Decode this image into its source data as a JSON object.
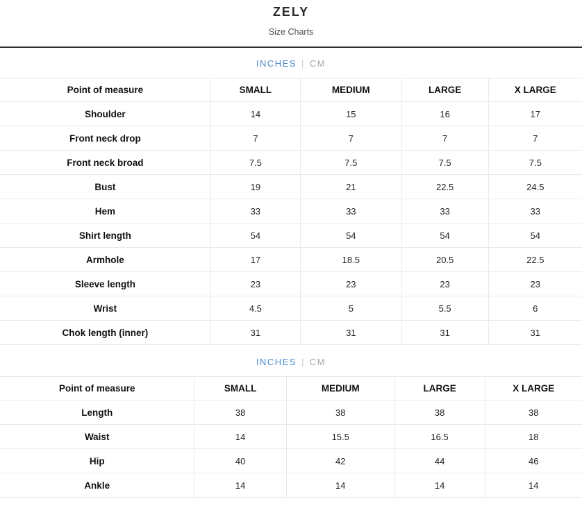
{
  "page": {
    "title": "ZELY",
    "subtitle": "Size Charts"
  },
  "colors": {
    "accent_blue": "#4a8bc9",
    "inactive_gray": "#a2a6aa",
    "divider_dark": "#2f2f2f",
    "table_border": "#e9e9e9"
  },
  "unit_toggle": {
    "inches_label": "INCHES",
    "separator": "|",
    "cm_label": "CM",
    "active_unit": "INCHES"
  },
  "tables": [
    {
      "name": "top-garment-size-chart",
      "headers": [
        "Point of measure",
        "SMALL",
        "MEDIUM",
        "LARGE",
        "X LARGE"
      ],
      "rows": [
        {
          "label": "Shoulder",
          "values": [
            "14",
            "15",
            "16",
            "17"
          ]
        },
        {
          "label": "Front neck drop",
          "values": [
            "7",
            "7",
            "7",
            "7"
          ]
        },
        {
          "label": "Front neck broad",
          "values": [
            "7.5",
            "7.5",
            "7.5",
            "7.5"
          ]
        },
        {
          "label": "Bust",
          "values": [
            "19",
            "21",
            "22.5",
            "24.5"
          ]
        },
        {
          "label": "Hem",
          "values": [
            "33",
            "33",
            "33",
            "33"
          ]
        },
        {
          "label": "Shirt length",
          "values": [
            "54",
            "54",
            "54",
            "54"
          ]
        },
        {
          "label": "Armhole",
          "values": [
            "17",
            "18.5",
            "20.5",
            "22.5"
          ]
        },
        {
          "label": "Sleeve length",
          "values": [
            "23",
            "23",
            "23",
            "23"
          ]
        },
        {
          "label": "Wrist",
          "values": [
            "4.5",
            "5",
            "5.5",
            "6"
          ]
        },
        {
          "label": "Chok length (inner)",
          "values": [
            "31",
            "31",
            "31",
            "31"
          ]
        }
      ]
    },
    {
      "name": "bottom-garment-size-chart",
      "headers": [
        "Point of measure",
        "SMALL",
        "MEDIUM",
        "LARGE",
        "X LARGE"
      ],
      "rows": [
        {
          "label": "Length",
          "values": [
            "38",
            "38",
            "38",
            "38"
          ]
        },
        {
          "label": "Waist",
          "values": [
            "14",
            "15.5",
            "16.5",
            "18"
          ]
        },
        {
          "label": "Hip",
          "values": [
            "40",
            "42",
            "44",
            "46"
          ]
        },
        {
          "label": "Ankle",
          "values": [
            "14",
            "14",
            "14",
            "14"
          ]
        }
      ]
    }
  ]
}
